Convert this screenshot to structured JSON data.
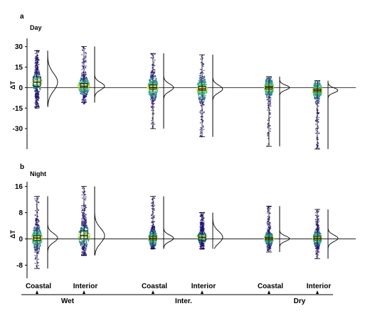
{
  "chart_data": [
    {
      "panel": "a",
      "type": "scatter",
      "title": "Day",
      "ylabel": "ΔT",
      "ylim": [
        -45,
        35
      ],
      "yticks": [
        30,
        15,
        0,
        -15,
        -30
      ],
      "categories": [
        "Coastal",
        "Interior",
        "Coastal",
        "Interior",
        "Coastal",
        "Interior"
      ],
      "groups": [
        {
          "name": "Wet",
          "categories": [
            0,
            1
          ]
        },
        {
          "name": "Inter.",
          "categories": [
            2,
            3
          ]
        },
        {
          "name": "Dry",
          "categories": [
            4,
            5
          ]
        }
      ],
      "distributions": [
        {
          "category": "Coastal",
          "group": "Wet",
          "whisker_low": -14,
          "q1": 1,
          "median": 4,
          "q3": 8,
          "whisker_high": 27,
          "points_low": -15,
          "points_high": 27,
          "spread": 8
        },
        {
          "category": "Interior",
          "group": "Wet",
          "whisker_low": -11,
          "q1": 0,
          "median": 1,
          "q3": 3,
          "whisker_high": 30,
          "points_low": -12,
          "points_high": 30,
          "spread": 9
        },
        {
          "category": "Coastal",
          "group": "Inter.",
          "whisker_low": -30,
          "q1": -1,
          "median": 0,
          "q3": 2,
          "whisker_high": 25,
          "points_low": -30,
          "points_high": 25,
          "spread": 8
        },
        {
          "category": "Interior",
          "group": "Inter.",
          "whisker_low": -36,
          "q1": -2,
          "median": -1,
          "q3": 1,
          "whisker_high": 24,
          "points_low": -36,
          "points_high": 24,
          "spread": 8
        },
        {
          "category": "Coastal",
          "group": "Dry",
          "whisker_low": -43,
          "q1": -1,
          "median": 0,
          "q3": 1,
          "whisker_high": 8,
          "points_low": -43,
          "points_high": 8,
          "spread": 7
        },
        {
          "category": "Interior",
          "group": "Dry",
          "whisker_low": -45,
          "q1": -3,
          "median": -2,
          "q3": -1,
          "whisker_high": 5,
          "points_low": -45,
          "points_high": 5,
          "spread": 7
        }
      ],
      "marginal_density": [
        {
          "range": [
            -14,
            27
          ]
        },
        {
          "range": [
            -11,
            30
          ]
        },
        {
          "range": [
            -30,
            25
          ]
        },
        {
          "range": [
            -36,
            24
          ]
        },
        {
          "range": [
            -43,
            8
          ]
        },
        {
          "range": [
            -45,
            5
          ]
        }
      ]
    },
    {
      "panel": "b",
      "type": "scatter",
      "title": "Night",
      "ylabel": "ΔT",
      "ylim": [
        -12,
        17
      ],
      "yticks": [
        16,
        8,
        0,
        -8
      ],
      "categories": [
        "Coastal",
        "Interior",
        "Coastal",
        "Interior",
        "Coastal",
        "Interior"
      ],
      "groups": [
        {
          "name": "Wet",
          "categories": [
            0,
            1
          ]
        },
        {
          "name": "Inter.",
          "categories": [
            2,
            3
          ]
        },
        {
          "name": "Dry",
          "categories": [
            4,
            5
          ]
        }
      ],
      "distributions": [
        {
          "category": "Coastal",
          "group": "Wet",
          "whisker_low": -9,
          "q1": -0.5,
          "median": 0.3,
          "q3": 1,
          "whisker_high": 13,
          "points_low": -9,
          "points_high": 13,
          "spread": 8
        },
        {
          "category": "Interior",
          "group": "Wet",
          "whisker_low": -5,
          "q1": 0,
          "median": 1,
          "q3": 2.5,
          "whisker_high": 16,
          "points_low": -5,
          "points_high": 16,
          "spread": 9
        },
        {
          "category": "Coastal",
          "group": "Inter.",
          "whisker_low": -3,
          "q1": -0.3,
          "median": 0.2,
          "q3": 0.8,
          "whisker_high": 13,
          "points_low": -3,
          "points_high": 13,
          "spread": 7
        },
        {
          "category": "Interior",
          "group": "Inter.",
          "whisker_low": -3,
          "q1": -0.5,
          "median": 0.5,
          "q3": 1.5,
          "whisker_high": 8,
          "points_low": -3,
          "points_high": 8,
          "spread": 8
        },
        {
          "category": "Coastal",
          "group": "Dry",
          "whisker_low": -4,
          "q1": -0.3,
          "median": 0.1,
          "q3": 0.5,
          "whisker_high": 10,
          "points_low": -4,
          "points_high": 10,
          "spread": 7
        },
        {
          "category": "Interior",
          "group": "Dry",
          "whisker_low": -6,
          "q1": -0.3,
          "median": 0.2,
          "q3": 0.8,
          "whisker_high": 9,
          "points_low": -6,
          "points_high": 9,
          "spread": 7
        }
      ],
      "marginal_density": [
        {
          "range": [
            -9,
            13
          ]
        },
        {
          "range": [
            -5,
            16
          ]
        },
        {
          "range": [
            -3,
            13
          ]
        },
        {
          "range": [
            -3,
            8
          ]
        },
        {
          "range": [
            -4,
            10
          ]
        },
        {
          "range": [
            -6,
            9
          ]
        }
      ]
    }
  ],
  "colors": {
    "low_density": "#2b1b8c",
    "mid_density": "#21908d",
    "high_density": "#fde725",
    "box": "#000000"
  }
}
